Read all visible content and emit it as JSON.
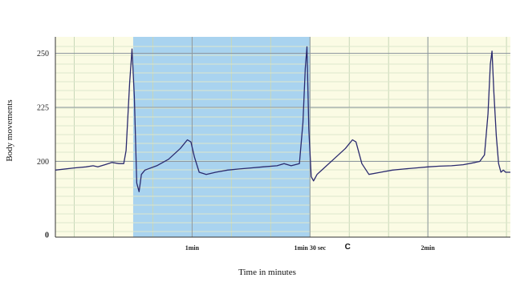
{
  "chart_data": {
    "type": "line",
    "title": "",
    "xlabel": "Time  in minutes",
    "ylabel": "Body movements",
    "y_ticks": [
      {
        "value": 0,
        "label": "0"
      },
      {
        "value": 200,
        "label": "200"
      },
      {
        "value": 225,
        "label": "225"
      },
      {
        "value": 250,
        "label": "250"
      }
    ],
    "x_ticks": [
      {
        "value": 1,
        "label": "1min"
      },
      {
        "value": 1.5,
        "label": "1min 30 sec"
      },
      {
        "value": 2,
        "label": "2min"
      }
    ],
    "annotations": [
      {
        "text": "C",
        "x": 1.66
      }
    ],
    "highlight": {
      "x_start": 0.75,
      "x_end": 1.5,
      "color": "#a9d3ef"
    },
    "background_color": "#fbfbe4",
    "grid": true,
    "line_color": "#2a2a6e",
    "xlim": [
      0.42,
      2.35
    ],
    "series": [
      {
        "values": [
          [
            0.42,
            196
          ],
          [
            0.5,
            197
          ],
          [
            0.55,
            197.5
          ],
          [
            0.58,
            198
          ],
          [
            0.6,
            197.5
          ],
          [
            0.63,
            198.5
          ],
          [
            0.66,
            199.5
          ],
          [
            0.69,
            199
          ],
          [
            0.71,
            199
          ],
          [
            0.72,
            205
          ],
          [
            0.735,
            236
          ],
          [
            0.745,
            252
          ],
          [
            0.755,
            230
          ],
          [
            0.765,
            190
          ],
          [
            0.775,
            186
          ],
          [
            0.785,
            194
          ],
          [
            0.8,
            196
          ],
          [
            0.85,
            198
          ],
          [
            0.9,
            201
          ],
          [
            0.95,
            206
          ],
          [
            0.98,
            210
          ],
          [
            0.995,
            209
          ],
          [
            1.01,
            202
          ],
          [
            1.03,
            195
          ],
          [
            1.06,
            194
          ],
          [
            1.1,
            195
          ],
          [
            1.15,
            196
          ],
          [
            1.2,
            196.5
          ],
          [
            1.25,
            197
          ],
          [
            1.3,
            197.5
          ],
          [
            1.36,
            198
          ],
          [
            1.39,
            199
          ],
          [
            1.42,
            198
          ],
          [
            1.455,
            199
          ],
          [
            1.47,
            218
          ],
          [
            1.48,
            243
          ],
          [
            1.487,
            253
          ],
          [
            1.495,
            215
          ],
          [
            1.505,
            193
          ],
          [
            1.515,
            191
          ],
          [
            1.53,
            194
          ],
          [
            1.56,
            197
          ],
          [
            1.6,
            201
          ],
          [
            1.65,
            206
          ],
          [
            1.68,
            210
          ],
          [
            1.695,
            209
          ],
          [
            1.72,
            199
          ],
          [
            1.75,
            194
          ],
          [
            1.8,
            195
          ],
          [
            1.85,
            196
          ],
          [
            1.9,
            196.5
          ],
          [
            1.95,
            197
          ],
          [
            2.0,
            197.5
          ],
          [
            2.05,
            197.8
          ],
          [
            2.1,
            198
          ],
          [
            2.15,
            198.5
          ],
          [
            2.2,
            199.5
          ],
          [
            2.22,
            200
          ],
          [
            2.24,
            203
          ],
          [
            2.255,
            222
          ],
          [
            2.265,
            245
          ],
          [
            2.272,
            251
          ],
          [
            2.28,
            232
          ],
          [
            2.29,
            212
          ],
          [
            2.3,
            199
          ],
          [
            2.31,
            195
          ],
          [
            2.32,
            196
          ],
          [
            2.33,
            195
          ],
          [
            2.35,
            195
          ]
        ]
      }
    ]
  }
}
